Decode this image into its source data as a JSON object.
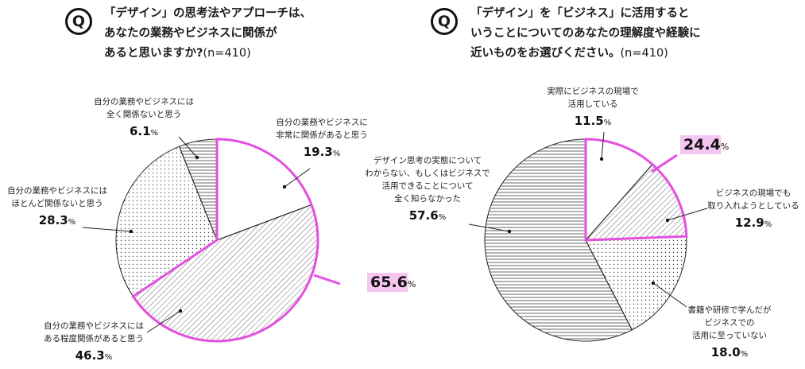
{
  "questions": [
    {
      "badge": "Q",
      "lines": [
        "「デザイン」の思考法やアプローチは、",
        "あなたの業務やビジネスに関係が",
        "あると思いますか?"
      ],
      "n": "(n=410)"
    },
    {
      "badge": "Q",
      "lines": [
        "「デザイン」を「ビジネス」に活用すると",
        "いうことについてのあなたの理解度や経験に",
        "近いものをお選びください。"
      ],
      "n": "(n=410)"
    }
  ],
  "chart_data": [
    {
      "type": "pie",
      "slices": [
        {
          "label_lines": [
            "自分の業務やビジネスに",
            "非常に関係があると思う"
          ],
          "value": 19.3,
          "value_text": "19.3",
          "pattern": "blank"
        },
        {
          "label_lines": [
            "自分の業務やビジネスには",
            "ある程度関係があると思う"
          ],
          "value": 46.3,
          "value_text": "46.3",
          "pattern": "diagonal"
        },
        {
          "label_lines": [
            "自分の業務やビジネスには",
            "ほとんど関係ないと思う"
          ],
          "value": 28.3,
          "value_text": "28.3",
          "pattern": "dots"
        },
        {
          "label_lines": [
            "自分の業務やビジネスには",
            "全く関係ないと思う"
          ],
          "value": 6.1,
          "value_text": "6.1",
          "pattern": "horizontal"
        }
      ],
      "highlight": {
        "value_text": "65.6",
        "slices": [
          0,
          1
        ],
        "color": "#e44fe0",
        "bg": "#f6c6f2"
      },
      "unit": "%"
    },
    {
      "type": "pie",
      "slices": [
        {
          "label_lines": [
            "実際にビジネスの現場で",
            "活用している"
          ],
          "value": 11.5,
          "value_text": "11.5",
          "pattern": "blank"
        },
        {
          "label_lines": [
            "ビジネスの現場でも",
            "取り入れようとしている"
          ],
          "value": 12.9,
          "value_text": "12.9",
          "pattern": "diagonal"
        },
        {
          "label_lines": [
            "書籍や研修で学んだが",
            "ビジネスでの",
            "活用に至っていない"
          ],
          "value": 18.0,
          "value_text": "18.0",
          "pattern": "dots"
        },
        {
          "label_lines": [
            "デザイン思考の実態について",
            "わからない、もしくはビジネスで",
            "活用できることについて",
            "全く知らなかった"
          ],
          "value": 57.6,
          "value_text": "57.6",
          "pattern": "horizontal"
        }
      ],
      "highlight": {
        "value_text": "24.4",
        "slices": [
          0,
          1
        ],
        "color": "#e44fe0",
        "bg": "#f6c6f2"
      },
      "unit": "%"
    }
  ]
}
